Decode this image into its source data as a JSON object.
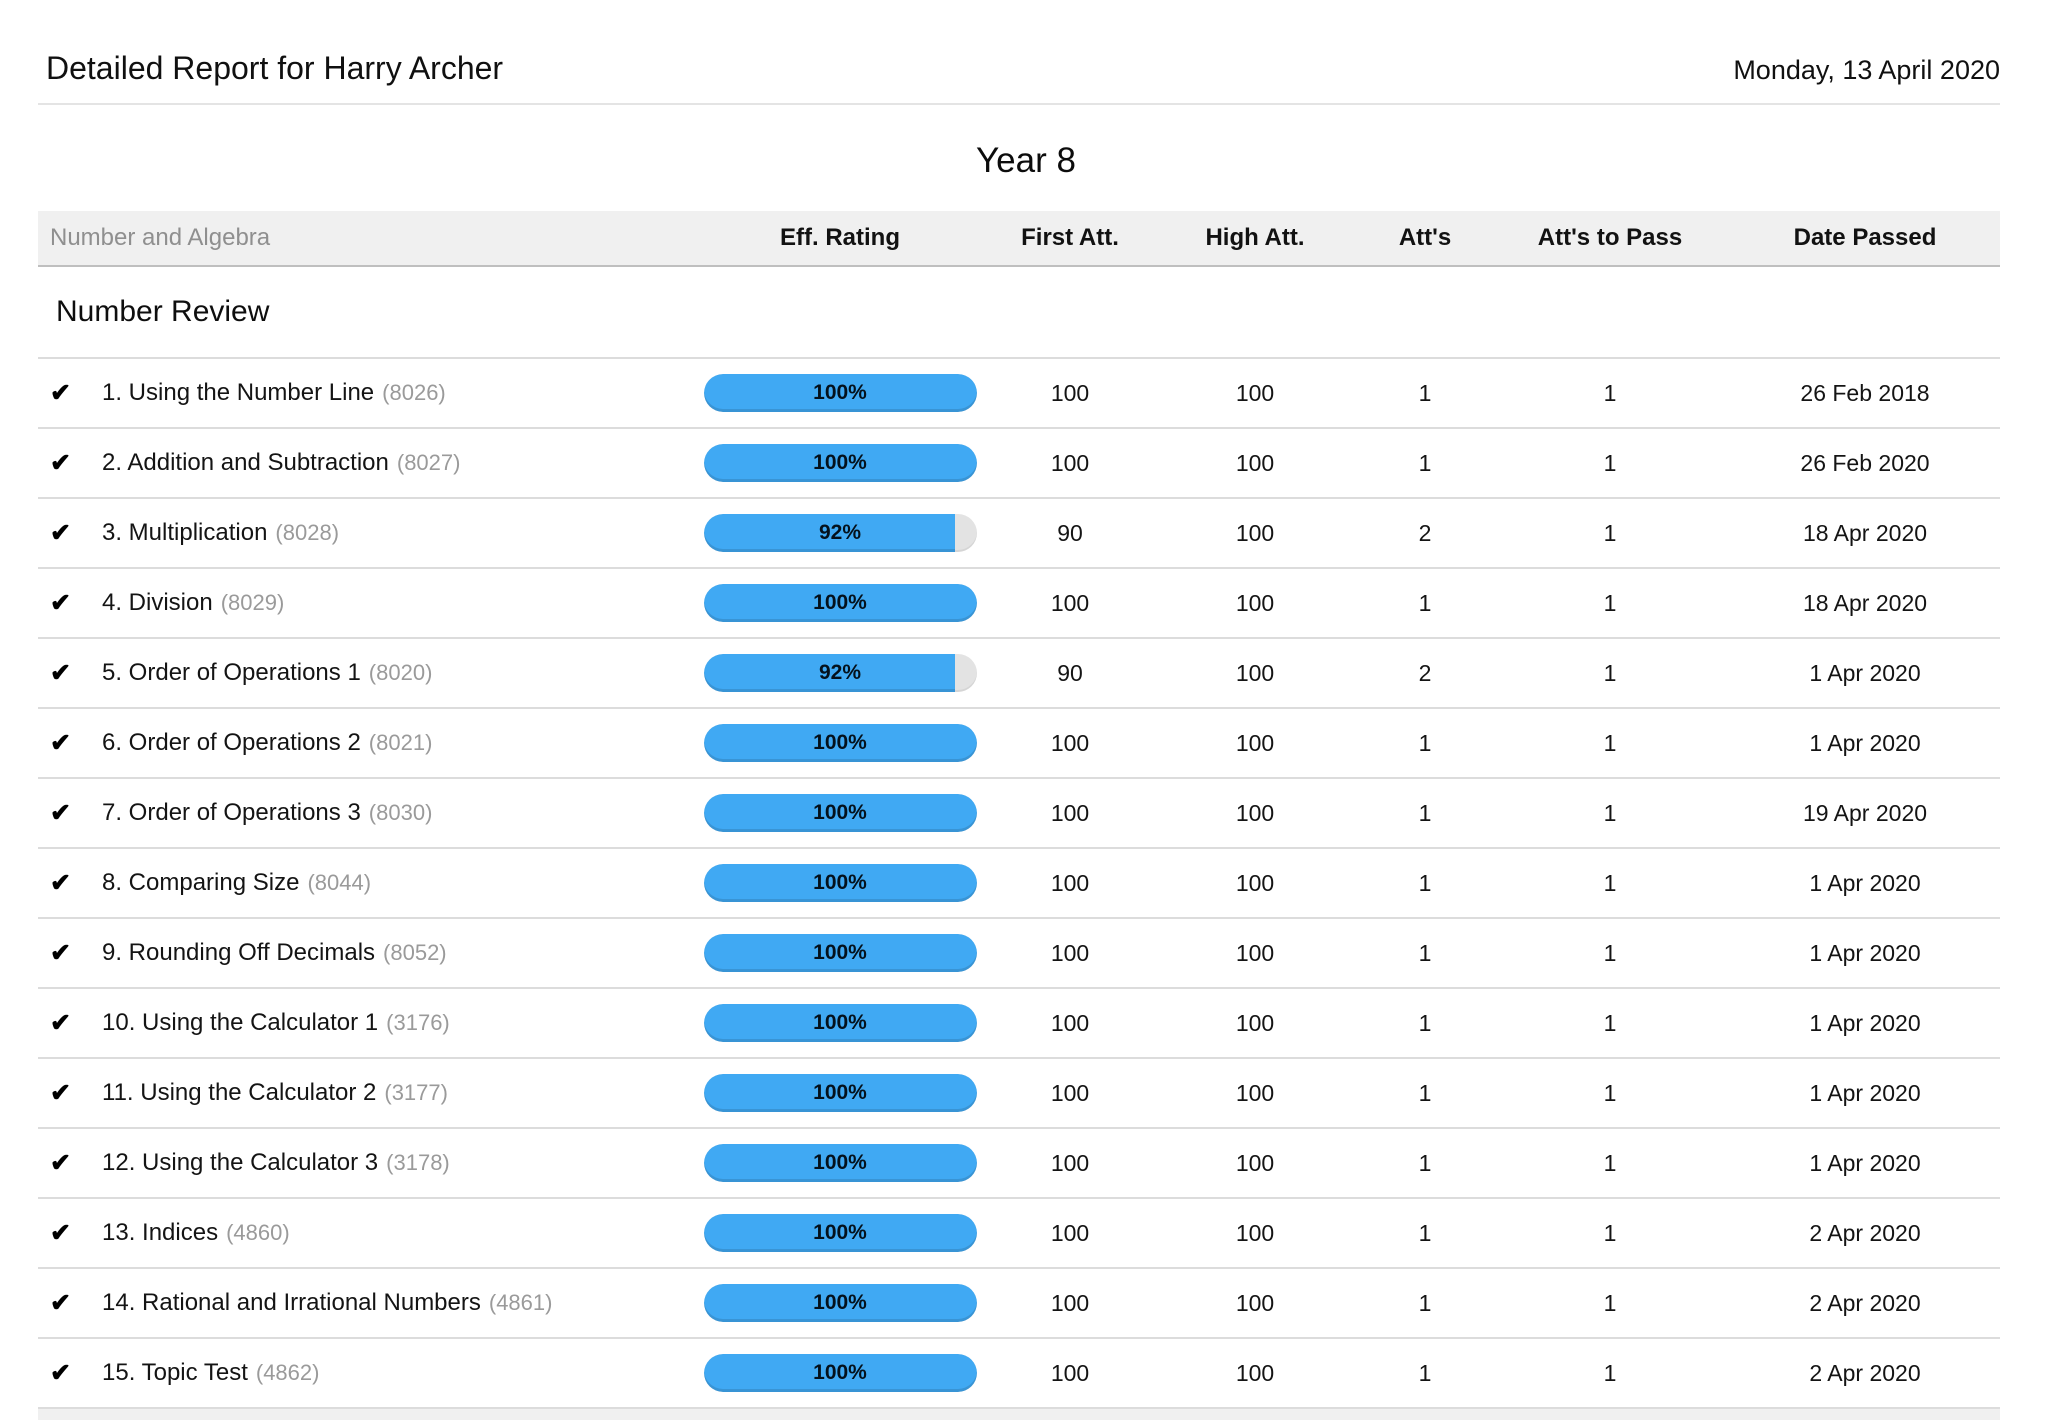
{
  "header": {
    "title": "Detailed Report for Harry Archer",
    "date": "Monday, 13 April 2020"
  },
  "page": {
    "year_title": "Year 8"
  },
  "icons": {
    "passed_check": "✔"
  },
  "colors": {
    "accent_blue": "#40a9f3",
    "pill_track": "#e3e3e3",
    "header_band": "#f0f0f0"
  },
  "table": {
    "strand_label": "Number and Algebra",
    "columns": {
      "eff_rating": "Eff. Rating",
      "first_att": "First Att.",
      "high_att": "High Att.",
      "atts": "Att's",
      "atts_to_pass": "Att's to Pass",
      "date_passed": "Date Passed"
    },
    "section_title": "Number Review",
    "rows": [
      {
        "name": "1. Using the Number Line",
        "code": "(8026)",
        "rating_percent": 100,
        "rating_label": "100%",
        "first_att": "100",
        "high_att": "100",
        "atts": "1",
        "atts_to_pass": "1",
        "date_passed": "26 Feb 2018"
      },
      {
        "name": "2. Addition and Subtraction",
        "code": "(8027)",
        "rating_percent": 100,
        "rating_label": "100%",
        "first_att": "100",
        "high_att": "100",
        "atts": "1",
        "atts_to_pass": "1",
        "date_passed": "26 Feb 2020"
      },
      {
        "name": "3. Multiplication",
        "code": "(8028)",
        "rating_percent": 92,
        "rating_label": "92%",
        "first_att": "90",
        "high_att": "100",
        "atts": "2",
        "atts_to_pass": "1",
        "date_passed": "18 Apr 2020"
      },
      {
        "name": "4. Division",
        "code": "(8029)",
        "rating_percent": 100,
        "rating_label": "100%",
        "first_att": "100",
        "high_att": "100",
        "atts": "1",
        "atts_to_pass": "1",
        "date_passed": "18 Apr 2020"
      },
      {
        "name": "5. Order of Operations 1",
        "code": "(8020)",
        "rating_percent": 92,
        "rating_label": "92%",
        "first_att": "90",
        "high_att": "100",
        "atts": "2",
        "atts_to_pass": "1",
        "date_passed": "1 Apr 2020"
      },
      {
        "name": "6. Order of Operations 2",
        "code": "(8021)",
        "rating_percent": 100,
        "rating_label": "100%",
        "first_att": "100",
        "high_att": "100",
        "atts": "1",
        "atts_to_pass": "1",
        "date_passed": "1 Apr 2020"
      },
      {
        "name": "7. Order of Operations 3",
        "code": "(8030)",
        "rating_percent": 100,
        "rating_label": "100%",
        "first_att": "100",
        "high_att": "100",
        "atts": "1",
        "atts_to_pass": "1",
        "date_passed": "19 Apr 2020"
      },
      {
        "name": "8. Comparing Size",
        "code": "(8044)",
        "rating_percent": 100,
        "rating_label": "100%",
        "first_att": "100",
        "high_att": "100",
        "atts": "1",
        "atts_to_pass": "1",
        "date_passed": "1 Apr 2020"
      },
      {
        "name": "9. Rounding Off Decimals",
        "code": "(8052)",
        "rating_percent": 100,
        "rating_label": "100%",
        "first_att": "100",
        "high_att": "100",
        "atts": "1",
        "atts_to_pass": "1",
        "date_passed": "1 Apr 2020"
      },
      {
        "name": "10. Using the Calculator 1",
        "code": "(3176)",
        "rating_percent": 100,
        "rating_label": "100%",
        "first_att": "100",
        "high_att": "100",
        "atts": "1",
        "atts_to_pass": "1",
        "date_passed": "1 Apr 2020"
      },
      {
        "name": "11. Using the Calculator 2",
        "code": "(3177)",
        "rating_percent": 100,
        "rating_label": "100%",
        "first_att": "100",
        "high_att": "100",
        "atts": "1",
        "atts_to_pass": "1",
        "date_passed": "1 Apr 2020"
      },
      {
        "name": "12. Using the Calculator 3",
        "code": "(3178)",
        "rating_percent": 100,
        "rating_label": "100%",
        "first_att": "100",
        "high_att": "100",
        "atts": "1",
        "atts_to_pass": "1",
        "date_passed": "1 Apr 2020"
      },
      {
        "name": "13. Indices",
        "code": "(4860)",
        "rating_percent": 100,
        "rating_label": "100%",
        "first_att": "100",
        "high_att": "100",
        "atts": "1",
        "atts_to_pass": "1",
        "date_passed": "2 Apr 2020"
      },
      {
        "name": "14. Rational and Irrational Numbers",
        "code": "(4861)",
        "rating_percent": 100,
        "rating_label": "100%",
        "first_att": "100",
        "high_att": "100",
        "atts": "1",
        "atts_to_pass": "1",
        "date_passed": "2 Apr 2020"
      },
      {
        "name": "15. Topic Test",
        "code": "(4862)",
        "rating_percent": 100,
        "rating_label": "100%",
        "first_att": "100",
        "high_att": "100",
        "atts": "1",
        "atts_to_pass": "1",
        "date_passed": "2 Apr 2020"
      }
    ]
  }
}
